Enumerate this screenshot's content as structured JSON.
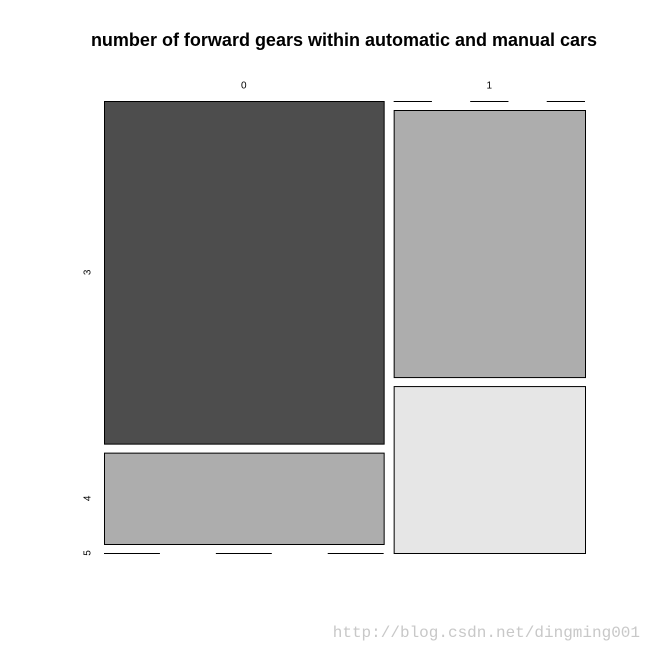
{
  "chart_data": {
    "type": "mosaic",
    "title": "number of forward gears within automatic and manual cars",
    "categories": [
      "0",
      "1"
    ],
    "series": [
      {
        "name": "3",
        "color": "#4d4d4d",
        "values": [
          15,
          0
        ]
      },
      {
        "name": "4",
        "color": "#adadad",
        "values": [
          4,
          8
        ]
      },
      {
        "name": "5",
        "color": "#e6e6e6",
        "values": [
          0,
          5
        ]
      }
    ],
    "annotation": "http://blog.csdn.net/dingming001"
  }
}
